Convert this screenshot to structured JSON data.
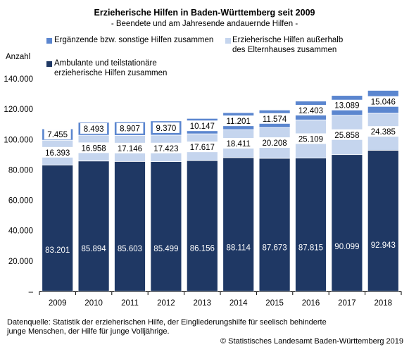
{
  "chart_data": {
    "type": "bar",
    "stacked": true,
    "title": "Erzieherische Hilfen in Baden-Württemberg seit 2009",
    "subtitle": "- Beendete und am Jahresende andauernde Hilfen -",
    "ylabel": "Anzahl",
    "xlabel": "",
    "ylim": [
      0,
      140000
    ],
    "yticks": [
      "–",
      "20.000",
      "40.000",
      "60.000",
      "80.000",
      "100.000",
      "120.000",
      "140.000"
    ],
    "categories": [
      "2009",
      "2010",
      "2011",
      "2012",
      "2013",
      "2014",
      "2015",
      "2016",
      "2017",
      "2018"
    ],
    "series": [
      {
        "name": "Ambulante und teilstationäre erzieherische Hilfen zusammen",
        "color": "#1f3864",
        "values": [
          83201,
          85894,
          85603,
          85499,
          86156,
          88114,
          87673,
          87815,
          90099,
          92943
        ],
        "labels": [
          "83.201",
          "85.894",
          "85.603",
          "85.499",
          "86.156",
          "88.114",
          "87.673",
          "87.815",
          "90.099",
          "92.943"
        ]
      },
      {
        "name": "Erzieherische Hilfen außerhalb des Elternhauses zusammen",
        "color": "#c5d5ee",
        "values": [
          16393,
          16958,
          17146,
          17423,
          17617,
          18411,
          20208,
          25109,
          25858,
          24385
        ],
        "labels": [
          "16.393",
          "16.958",
          "17.146",
          "17.423",
          "17.617",
          "18.411",
          "20.208",
          "25.109",
          "25.858",
          "24.385"
        ]
      },
      {
        "name": "Ergänzende bzw. sonstige Hilfen zusammen",
        "color": "#5b86cf",
        "values": [
          7455,
          8493,
          8907,
          9370,
          10147,
          11201,
          11574,
          12403,
          13089,
          15046
        ],
        "labels": [
          "7.455",
          "8.493",
          "8.907",
          "9.370",
          "10.147",
          "11.201",
          "11.574",
          "12.403",
          "13.089",
          "15.046"
        ]
      }
    ],
    "grid": false
  },
  "legend": {
    "item1_line1": "Ergänzende bzw. sonstige Hilfen zusammen",
    "item2_line1": "Erzieherische Hilfen außerhalb",
    "item2_line2": "des Elternhauses zusammen",
    "item3_line1": "Ambulante und teilstationäre",
    "item3_line2": "erzieherische Hilfen zusammen"
  },
  "footer": {
    "source_line1": "Datenquelle: Statistik der erzieherischen Hilfe, der Eingliederungshilfe für seelisch behinderte",
    "source_line2": "junge Menschen, der Hilfe für junge Volljährige.",
    "copyright": "© Statistisches Landesamt Baden-Württemberg 2019"
  }
}
